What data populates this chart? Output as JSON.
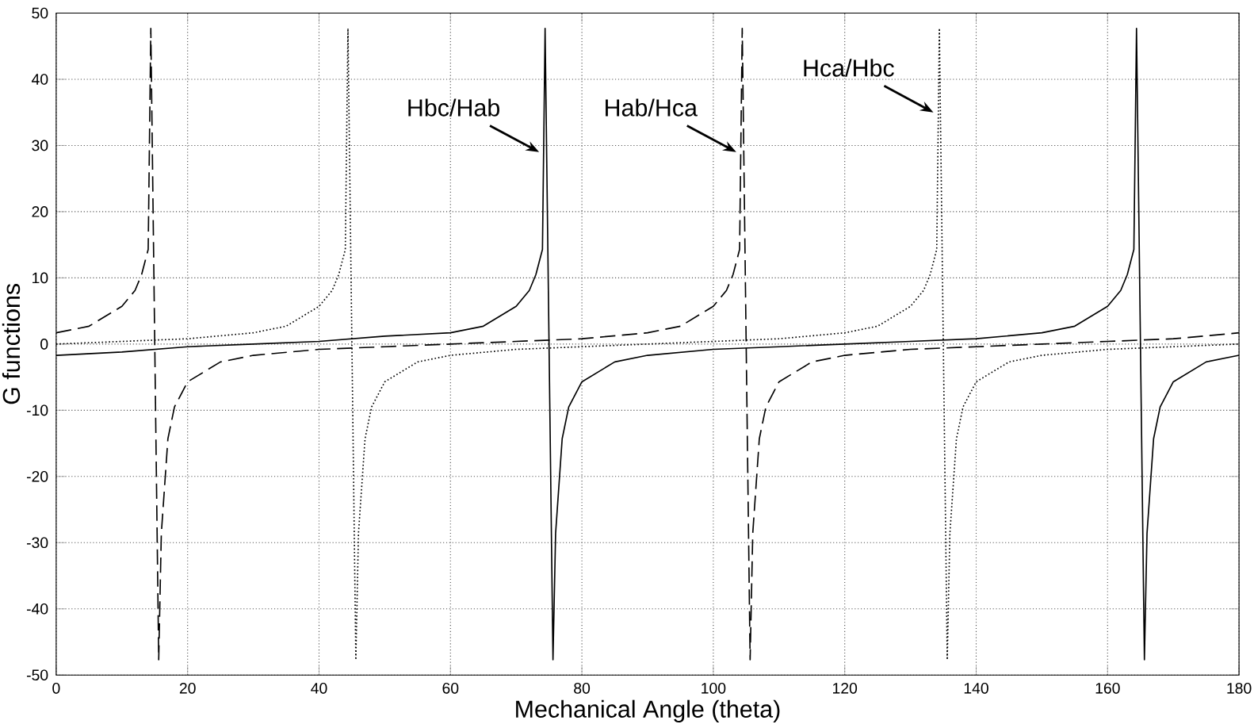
{
  "chart_data": {
    "type": "line",
    "xlabel": "Mechanical Angle (theta)",
    "ylabel": "G functions",
    "xlim": [
      0,
      180
    ],
    "ylim": [
      -50,
      50
    ],
    "xticks": [
      0,
      20,
      40,
      60,
      80,
      100,
      120,
      140,
      160,
      180
    ],
    "yticks": [
      -50,
      -40,
      -30,
      -20,
      -10,
      0,
      10,
      20,
      30,
      40,
      50
    ],
    "grid": true,
    "marker": "none",
    "series": [
      {
        "color": "#000000",
        "line_style": "solid",
        "x": [
          0,
          10,
          20,
          30,
          40,
          50,
          60,
          65,
          70,
          72,
          73,
          74,
          74.4,
          75.6,
          76,
          77,
          78,
          80,
          85,
          90,
          100,
          110,
          120,
          130,
          140,
          150,
          155,
          160,
          162,
          163,
          164,
          164.4,
          165.6,
          166,
          167,
          168,
          170,
          175,
          180
        ],
        "values": [
          -1.7,
          -1.2,
          -0.4,
          0,
          0.4,
          1.2,
          1.7,
          2.7,
          5.7,
          8.1,
          10.5,
          14.3,
          47.7,
          -47.7,
          -28.6,
          -14.3,
          -9.5,
          -5.7,
          -2.7,
          -1.7,
          -0.8,
          -0.4,
          0,
          0.4,
          0.8,
          1.7,
          2.7,
          5.7,
          8.1,
          10.5,
          14.3,
          47.7,
          -47.7,
          -28.6,
          -14.3,
          -9.5,
          -5.7,
          -2.7,
          -1.7
        ]
      },
      {
        "color": "#000000",
        "line_style": "dashed",
        "x": [
          0,
          5,
          10,
          12,
          13,
          14,
          14.4,
          15.6,
          16,
          17,
          18,
          20,
          25,
          30,
          40,
          50,
          60,
          70,
          80,
          90,
          95,
          100,
          102,
          103,
          104,
          104.4,
          105.6,
          106,
          107,
          108,
          110,
          115,
          120,
          130,
          140,
          150,
          160,
          170,
          180
        ],
        "values": [
          1.7,
          2.7,
          5.7,
          8.1,
          10.5,
          14.3,
          47.7,
          -47.7,
          -28.6,
          -14.3,
          -9.5,
          -5.7,
          -2.7,
          -1.7,
          -0.8,
          -0.4,
          0,
          0.4,
          0.8,
          1.7,
          2.7,
          5.7,
          8.1,
          10.5,
          14.3,
          47.7,
          -47.7,
          -28.6,
          -14.3,
          -9.5,
          -5.7,
          -2.7,
          -1.7,
          -0.8,
          -0.4,
          0,
          0.4,
          0.8,
          1.7
        ]
      },
      {
        "color": "#000000",
        "line_style": "dotted",
        "x": [
          0,
          10,
          20,
          30,
          35,
          40,
          42,
          43,
          44,
          44.4,
          45.6,
          46,
          47,
          48,
          50,
          55,
          60,
          70,
          80,
          90,
          100,
          110,
          120,
          125,
          130,
          132,
          133,
          134,
          134.4,
          135.6,
          136,
          137,
          138,
          140,
          145,
          150,
          160,
          170,
          180
        ],
        "values": [
          0,
          0.4,
          0.8,
          1.7,
          2.7,
          5.7,
          8.1,
          10.5,
          14.3,
          47.7,
          -47.7,
          -28.6,
          -14.3,
          -9.5,
          -5.7,
          -2.7,
          -1.7,
          -0.8,
          -0.4,
          0,
          0.4,
          0.8,
          1.7,
          2.7,
          5.7,
          8.1,
          10.5,
          14.3,
          47.7,
          -47.7,
          -28.6,
          -14.3,
          -9.5,
          -5.7,
          -2.7,
          -1.7,
          -0.8,
          -0.4,
          0
        ]
      }
    ],
    "annotations": [
      {
        "text": "Hbc/Hab",
        "x": 74,
        "y": 29
      },
      {
        "text": "Hab/Hca",
        "x": 104,
        "y": 29
      },
      {
        "text": "Hca/Hbc",
        "x": 134,
        "y": 35
      }
    ]
  }
}
